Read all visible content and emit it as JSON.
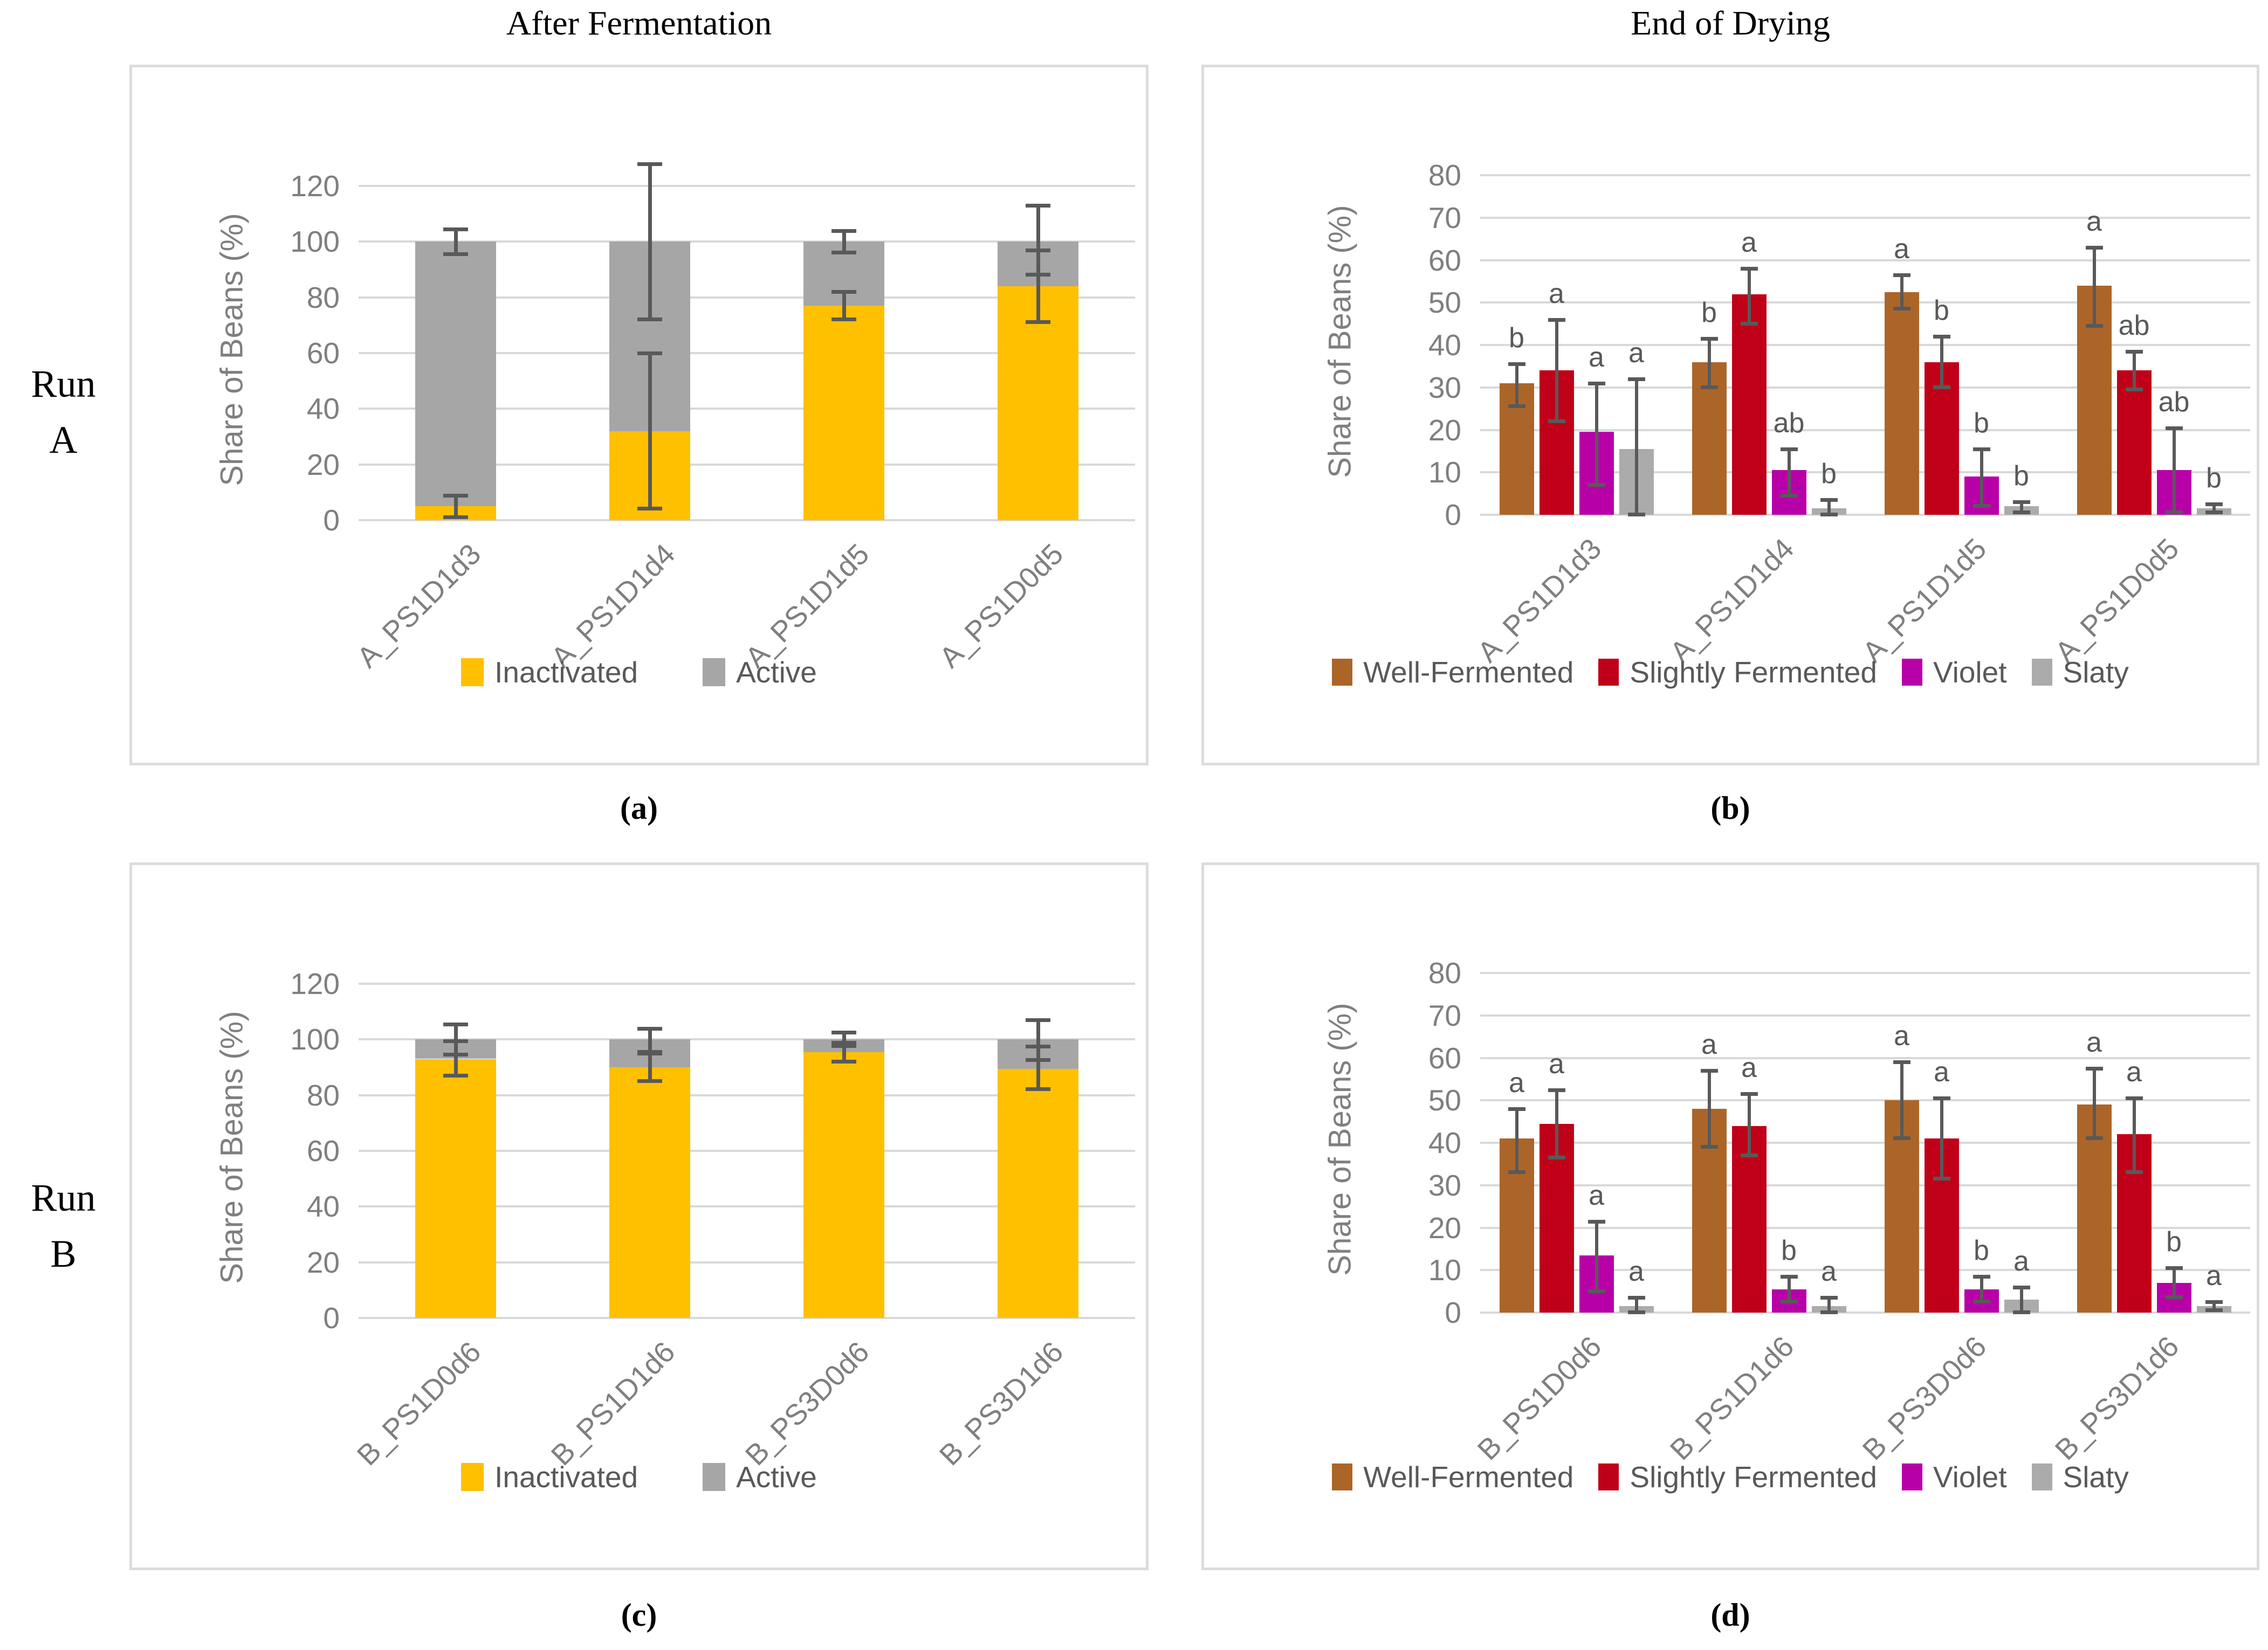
{
  "titles": {
    "left": "After Fermentation",
    "right": "End of Drying"
  },
  "row_labels": [
    {
      "line1": "Run",
      "line2": "A"
    },
    {
      "line1": "Run",
      "line2": "B"
    }
  ],
  "captions": [
    "(a)",
    "(b)",
    "(c)",
    "(d)"
  ],
  "colors": {
    "inactivated": "#FFC000",
    "active": "#A6A6A6",
    "well_fermented": "#AC6528",
    "slightly_fermented": "#C00018",
    "violet": "#B800A8",
    "slaty": "#ABABAB",
    "error_bar": "#595959",
    "gridline": "#D9D9D9",
    "axis_text": "#7F7F7F",
    "letter": "#595959",
    "legend_text": "#595959",
    "panel_border": "#DCDCDC"
  },
  "chart_data": [
    {
      "panel": "a",
      "type": "stacked-bar",
      "ylabel": "Share of Beans (%)",
      "ylim": [
        0,
        120
      ],
      "yticks": [
        0,
        20,
        40,
        60,
        80,
        100,
        120
      ],
      "categories": [
        "A_PS1D1d3",
        "A_PS1D1d4",
        "A_PS1D1d5",
        "A_PS1D0d5"
      ],
      "series": [
        {
          "name": "Inactivated",
          "color_key": "inactivated",
          "values": [
            5,
            32,
            77,
            84
          ],
          "err_lo": [
            1,
            4,
            72,
            71
          ],
          "err_hi": [
            9,
            60,
            82,
            97
          ]
        },
        {
          "name": "Active",
          "color_key": "active",
          "values": [
            95,
            68,
            23,
            16
          ]
        }
      ],
      "stack_total": [
        100,
        100,
        100,
        100
      ],
      "stack_total_err_lo": [
        95.5,
        72,
        96,
        88
      ],
      "stack_total_err_hi": [
        104.5,
        128,
        104,
        113
      ],
      "legend": [
        "Inactivated",
        "Active"
      ]
    },
    {
      "panel": "b",
      "type": "grouped-bar",
      "ylabel": "Share of Beans (%)",
      "ylim": [
        0,
        80
      ],
      "yticks": [
        0,
        10,
        20,
        30,
        40,
        50,
        60,
        70,
        80
      ],
      "categories": [
        "A_PS1D1d3",
        "A_PS1D1d4",
        "A_PS1D1d5",
        "A_PS1D0d5"
      ],
      "series": [
        {
          "name": "Well-Fermented",
          "color_key": "well_fermented",
          "values": [
            31,
            36,
            52.5,
            54
          ],
          "err_lo": [
            25.5,
            30,
            48.5,
            44.5
          ],
          "err_hi": [
            35.5,
            41.5,
            56.5,
            63
          ],
          "letters": [
            "b",
            "b",
            "a",
            "a"
          ]
        },
        {
          "name": "Slightly Fermented",
          "color_key": "slightly_fermented",
          "values": [
            34,
            52,
            36,
            34
          ],
          "err_lo": [
            22,
            45,
            30,
            29.5
          ],
          "err_hi": [
            46,
            58,
            42,
            38.5
          ],
          "letters": [
            "a",
            "a",
            "b",
            "ab"
          ]
        },
        {
          "name": "Violet",
          "color_key": "violet",
          "values": [
            19.5,
            10.5,
            9,
            10.5
          ],
          "err_lo": [
            7,
            4.5,
            2,
            0.5
          ],
          "err_hi": [
            31,
            15.5,
            15.5,
            20.5
          ],
          "letters": [
            "a",
            "ab",
            "b",
            "ab"
          ]
        },
        {
          "name": "Slaty",
          "color_key": "slaty",
          "values": [
            15.5,
            1.5,
            2,
            1.5
          ],
          "err_lo": [
            0,
            0,
            0.5,
            0.5
          ],
          "err_hi": [
            32,
            3.5,
            3,
            2.5
          ],
          "letters": [
            "a",
            "b",
            "b",
            "b"
          ]
        }
      ],
      "legend": [
        "Well-Fermented",
        "Slightly Fermented",
        "Violet",
        "Slaty"
      ]
    },
    {
      "panel": "c",
      "type": "stacked-bar",
      "ylabel": "Share of Beans (%)",
      "ylim": [
        0,
        120
      ],
      "yticks": [
        0,
        20,
        40,
        60,
        80,
        100,
        120
      ],
      "categories": [
        "B_PS1D0d6",
        "B_PS1D1d6",
        "B_PS3D0d6",
        "B_PS3D1d6"
      ],
      "series": [
        {
          "name": "Inactivated",
          "color_key": "inactivated",
          "values": [
            93,
            90,
            95.5,
            89.5
          ],
          "err_lo": [
            87,
            85,
            92,
            82
          ],
          "err_hi": [
            99.5,
            95,
            99,
            97.5
          ]
        },
        {
          "name": "Active",
          "color_key": "active",
          "values": [
            7,
            10,
            4.5,
            10.5
          ]
        }
      ],
      "stack_total": [
        100,
        100,
        100,
        100
      ],
      "stack_total_err_lo": [
        94.5,
        95.5,
        97.5,
        92.5
      ],
      "stack_total_err_hi": [
        105.5,
        104,
        102.5,
        107
      ],
      "legend": [
        "Inactivated",
        "Active"
      ]
    },
    {
      "panel": "d",
      "type": "grouped-bar",
      "ylabel": "Share of Beans (%)",
      "ylim": [
        0,
        80
      ],
      "yticks": [
        0,
        10,
        20,
        30,
        40,
        50,
        60,
        70,
        80
      ],
      "categories": [
        "B_PS1D0d6",
        "B_PS1D1d6",
        "B_PS3D0d6",
        "B_PS3D1d6"
      ],
      "series": [
        {
          "name": "Well-Fermented",
          "color_key": "well_fermented",
          "values": [
            41,
            48,
            50,
            49
          ],
          "err_lo": [
            33,
            39,
            41,
            41
          ],
          "err_hi": [
            48,
            57,
            59,
            57.5
          ],
          "letters": [
            "a",
            "a",
            "a",
            "a"
          ]
        },
        {
          "name": "Slightly Fermented",
          "color_key": "slightly_fermented",
          "values": [
            44.5,
            44,
            41,
            42
          ],
          "err_lo": [
            36.5,
            37,
            31.5,
            33
          ],
          "err_hi": [
            52.5,
            51.5,
            50.5,
            50.5
          ],
          "letters": [
            "a",
            "a",
            "a",
            "a"
          ]
        },
        {
          "name": "Violet",
          "color_key": "violet",
          "values": [
            13.5,
            5.5,
            5.5,
            7
          ],
          "err_lo": [
            5,
            2.5,
            2.5,
            3.5
          ],
          "err_hi": [
            21.5,
            8.5,
            8.5,
            10.5
          ],
          "letters": [
            "a",
            "b",
            "b",
            "b"
          ]
        },
        {
          "name": "Slaty",
          "color_key": "slaty",
          "values": [
            1.5,
            1.5,
            3,
            1.5
          ],
          "err_lo": [
            0,
            0,
            0,
            0.5
          ],
          "err_hi": [
            3.5,
            3.5,
            6,
            2.5
          ],
          "letters": [
            "a",
            "a",
            "a",
            "a"
          ]
        }
      ],
      "legend": [
        "Well-Fermented",
        "Slightly Fermented",
        "Violet",
        "Slaty"
      ]
    }
  ]
}
